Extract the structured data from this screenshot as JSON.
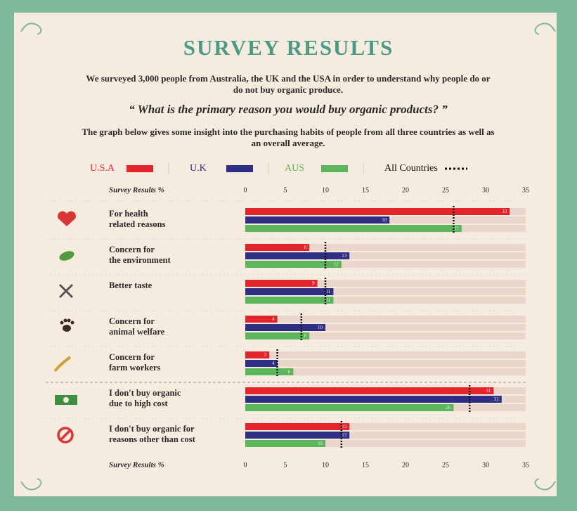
{
  "chart_data": {
    "type": "bar",
    "orientation": "horizontal",
    "title": "SURVEY RESULTS",
    "subtitle": "We surveyed 3,000 people from Australia, the UK and the USA in order to understand why people do or do not buy organic produce.",
    "question": "“ What is the primary reason you would buy organic products? ”",
    "description": "The graph below gives some insight into the purchasing habits of people from all three countries as well as an overall average.",
    "x_label": "Survey Results %",
    "categories": [
      "For health\nrelated reasons",
      "Concern for\nthe environment",
      "Better taste",
      "Concern for\nanimal welfare",
      "Concern for\nfarm workers",
      "I don't buy organic\ndue to high cost",
      "I don't buy organic for\nreasons other than cost"
    ],
    "series": [
      {
        "name": "U.S.A",
        "color": "#e4232b",
        "values": [
          33,
          8,
          9,
          4,
          3,
          31,
          13
        ]
      },
      {
        "name": "U.K",
        "color": "#2d2e84",
        "values": [
          18,
          13,
          11,
          10,
          4,
          32,
          13
        ]
      },
      {
        "name": "AUS",
        "color": "#5bb55a",
        "values": [
          27,
          12,
          11,
          8,
          6,
          26,
          10
        ]
      },
      {
        "name": "All Countries",
        "color": "#111111",
        "style": "dotted",
        "values": [
          26,
          10,
          10,
          7,
          4,
          28,
          12
        ]
      }
    ],
    "xlim": [
      0,
      35
    ],
    "xticks": [
      0,
      5,
      10,
      15,
      20,
      25,
      30,
      35
    ]
  }
}
